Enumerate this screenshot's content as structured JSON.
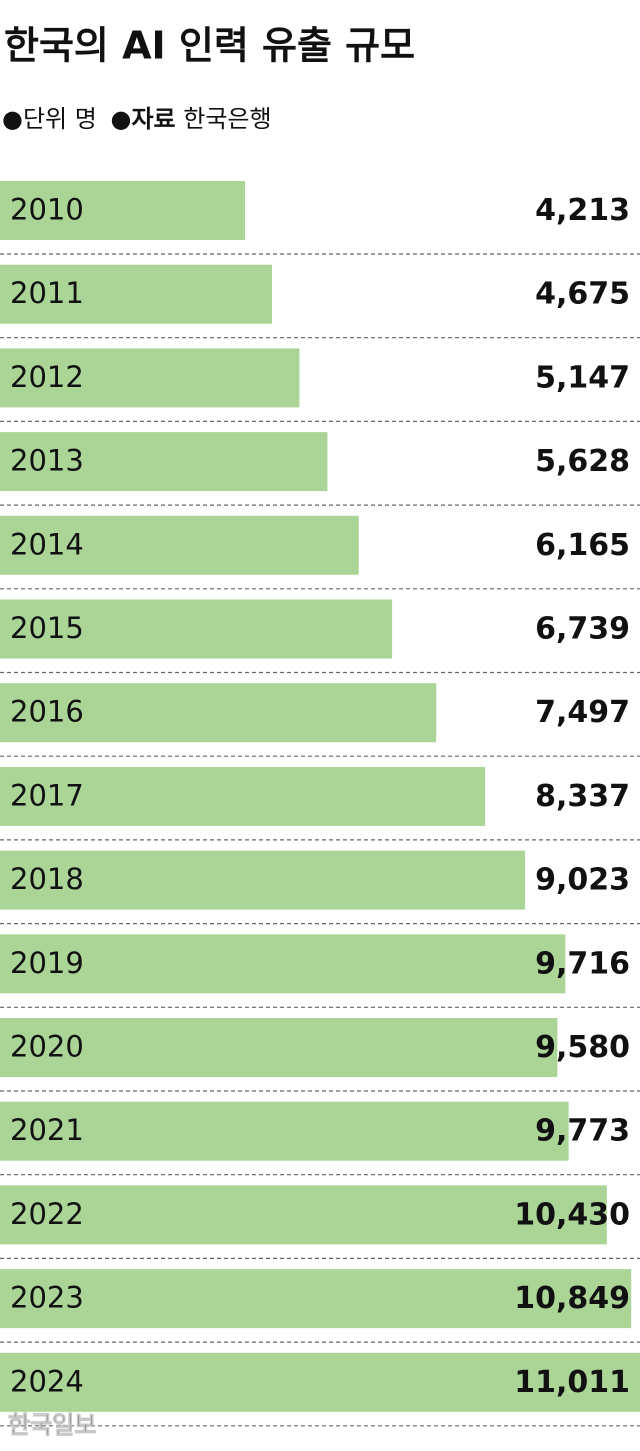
{
  "chart_data": {
    "type": "bar",
    "orientation": "horizontal",
    "title": "한국의 AI 인력 유출 규모",
    "unit_label": "단위",
    "unit": "명",
    "source_label": "자료",
    "source": "한국은행",
    "categories": [
      "2010",
      "2011",
      "2012",
      "2013",
      "2014",
      "2015",
      "2016",
      "2017",
      "2018",
      "2019",
      "2020",
      "2021",
      "2022",
      "2023",
      "2024"
    ],
    "values": [
      4213,
      4675,
      5147,
      5628,
      6165,
      6739,
      7497,
      8337,
      9023,
      9716,
      9580,
      9773,
      10430,
      10849,
      11011
    ],
    "value_labels": [
      "4,213",
      "4,675",
      "5,147",
      "5,628",
      "6,165",
      "6,739",
      "7,497",
      "8,337",
      "9,023",
      "9,716",
      "9,580",
      "9,773",
      "10,430",
      "10,849",
      "11,011"
    ],
    "color": "#aad596",
    "xlim": [
      0,
      11000
    ],
    "watermark": "한국일보"
  }
}
